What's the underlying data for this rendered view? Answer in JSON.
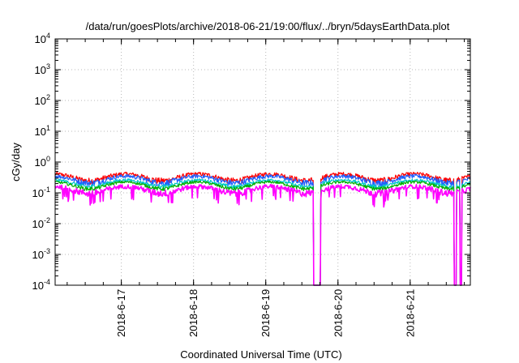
{
  "chart_data": {
    "type": "line",
    "title": "/data/run/goesPlots/archive/2018-06-21/19:00/flux/../bryn/5daysEarthData.plot",
    "xlabel": "Coordinated Universal Time (UTC)",
    "ylabel": "cGy/day",
    "y_scale": "log",
    "ylim": [
      0.0001,
      10000
    ],
    "y_ticks": [
      {
        "base": "10",
        "exp": "-4"
      },
      {
        "base": "10",
        "exp": "-3"
      },
      {
        "base": "10",
        "exp": "-2"
      },
      {
        "base": "10",
        "exp": "-1"
      },
      {
        "base": "10",
        "exp": "0"
      },
      {
        "base": "10",
        "exp": "1"
      },
      {
        "base": "10",
        "exp": "2"
      },
      {
        "base": "10",
        "exp": "3"
      },
      {
        "base": "10",
        "exp": "4"
      }
    ],
    "xlim": [
      "2018-06-16 02:00",
      "2018-06-21 20:00"
    ],
    "x_ticks": [
      "2018-6-17",
      "2018-6-18",
      "2018-6-19",
      "2018-6-20",
      "2018-6-21"
    ],
    "grid": true,
    "series": [
      {
        "color": "#ff0000",
        "base": 0.33,
        "amp": 0.12
      },
      {
        "color": "#1f5fff",
        "base": 0.28,
        "amp": 0.1
      },
      {
        "color": "#00c8c8",
        "base": 0.21,
        "amp": 0.05
      },
      {
        "color": "#00b000",
        "base": 0.18,
        "amp": 0.04
      },
      {
        "color": "#ff00ff",
        "base": 0.13,
        "amp": 0.05
      }
    ],
    "dropouts": [
      {
        "start": "2018-06-19 15:50",
        "end": "2018-06-19 18:10"
      },
      {
        "start": "2018-06-21 14:30",
        "end": "2018-06-21 15:20"
      },
      {
        "start": "2018-06-21 16:30",
        "end": "2018-06-21 17:10"
      }
    ]
  }
}
